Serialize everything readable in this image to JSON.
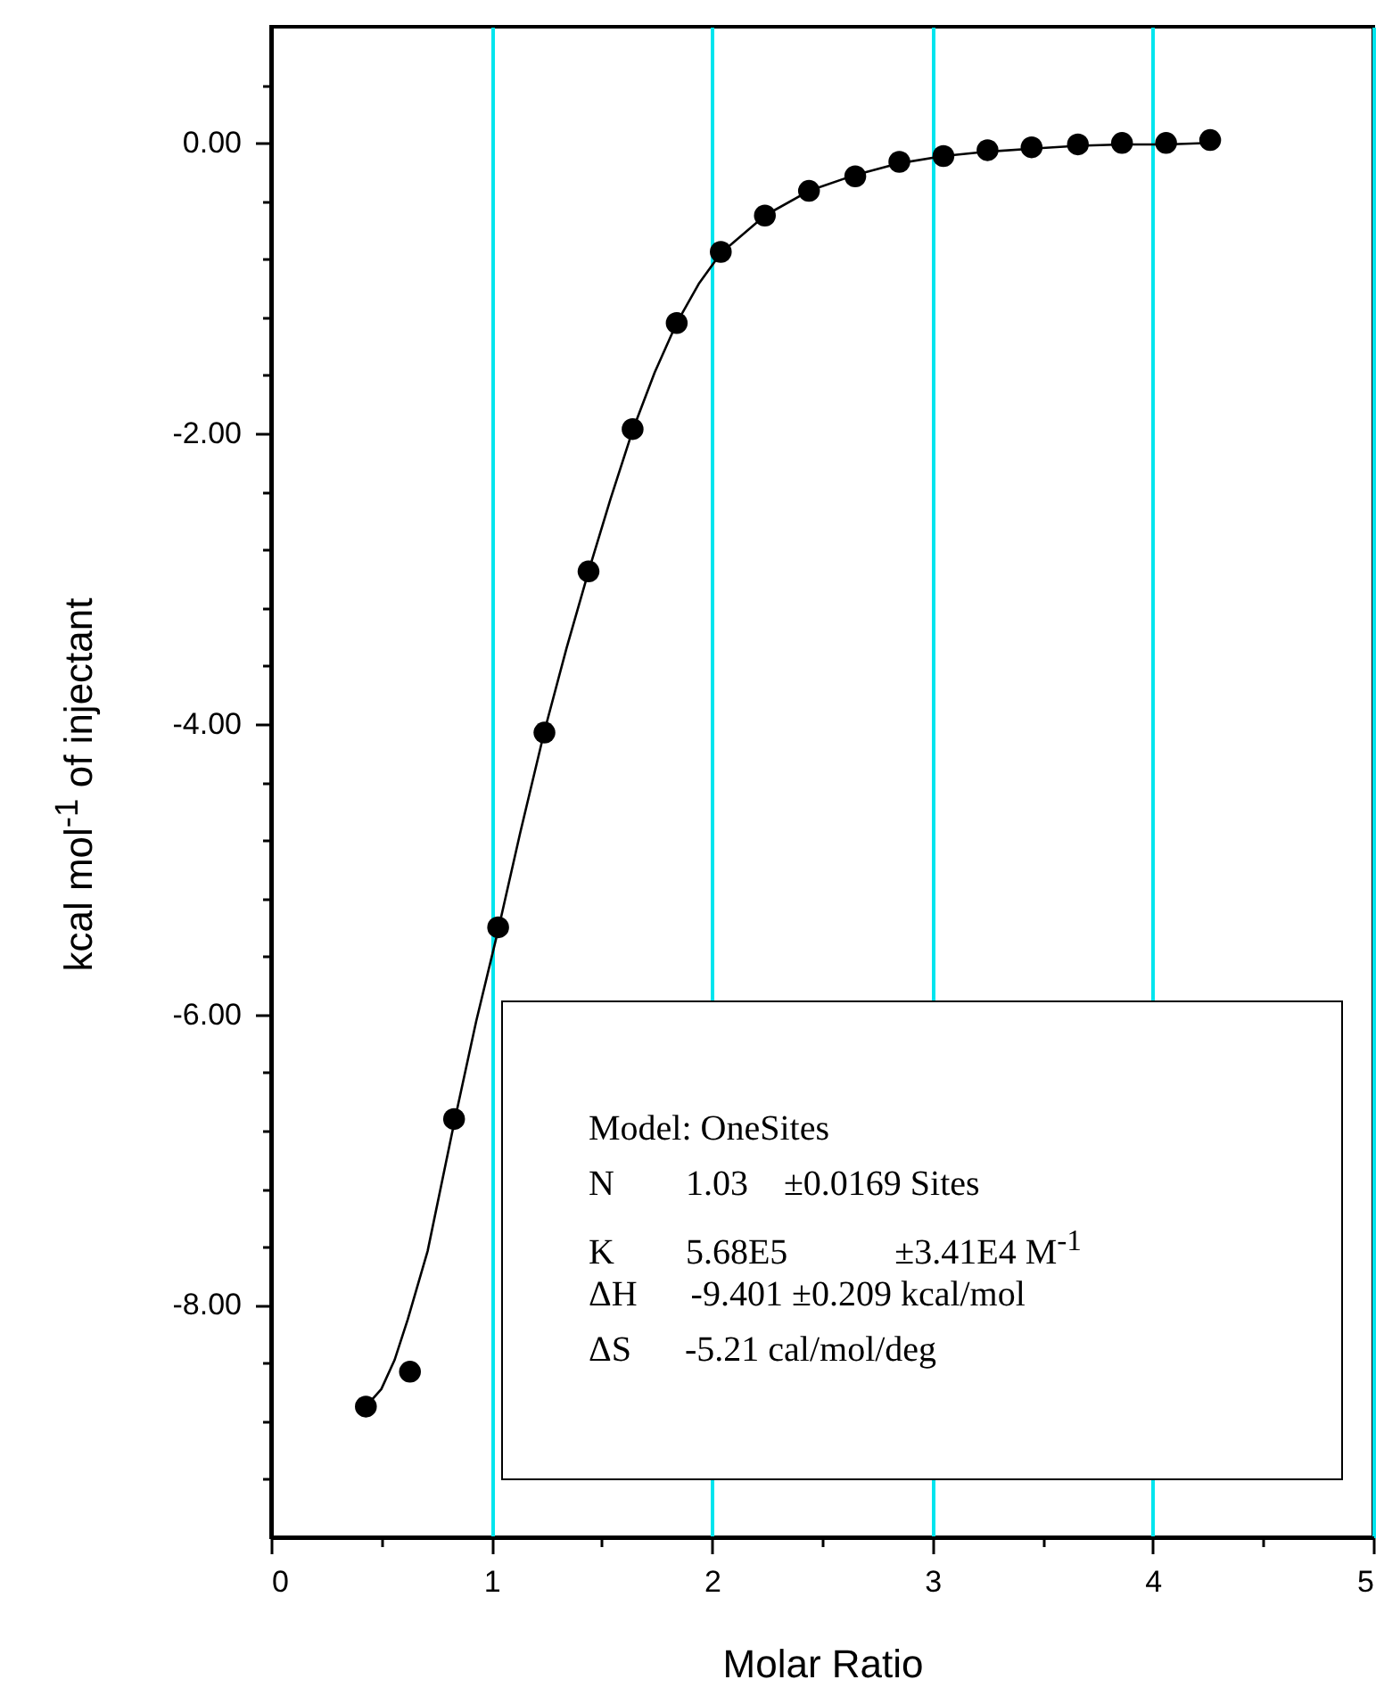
{
  "chart_data": {
    "type": "scatter",
    "xlabel": "Molar Ratio",
    "ylabel": "kcal mol$^{-1}$ of injectant",
    "xlim": [
      0,
      5
    ],
    "xticks": [
      0,
      {
        "value": 0.5,
        "label": null
      },
      1,
      {
        "value": 1.5,
        "label": null
      },
      2,
      {
        "value": 2.5,
        "label": null
      },
      3,
      {
        "value": 3.5,
        "label": null
      },
      4,
      {
        "value": 4.5,
        "label": null
      },
      5
    ],
    "ylim": [
      -9.6,
      0.8
    ],
    "yticks": [
      {
        "value": -9.2,
        "label": null
      },
      {
        "value": -8.8,
        "label": null
      },
      {
        "value": -8.4,
        "label": null
      },
      {
        "value": -8,
        "label": "-8.00"
      },
      {
        "value": -7.6,
        "label": null
      },
      {
        "value": -7.2,
        "label": null
      },
      {
        "value": -6.8,
        "label": null
      },
      {
        "value": -6.4,
        "label": null
      },
      {
        "value": -6,
        "label": "-6.00"
      },
      {
        "value": -5.6,
        "label": null
      },
      {
        "value": -5.2,
        "label": null
      },
      {
        "value": -4.8,
        "label": null
      },
      {
        "value": -4.4,
        "label": null
      },
      {
        "value": -4,
        "label": "-4.00"
      },
      {
        "value": -3.6,
        "label": null
      },
      {
        "value": -3.2,
        "label": null
      },
      {
        "value": -2.8,
        "label": null
      },
      {
        "value": -2.4,
        "label": null
      },
      {
        "value": -2,
        "label": "-2.00"
      },
      {
        "value": -1.6,
        "label": null
      },
      {
        "value": -1.2,
        "label": null
      },
      {
        "value": -0.8,
        "label": null
      },
      {
        "value": -0.4,
        "label": null
      },
      {
        "value": 0,
        "label": "0.00"
      },
      {
        "value": 0.4,
        "label": null
      }
    ],
    "grid": "x",
    "marker": "circle",
    "series": [
      {
        "type": "scatter",
        "color": "#000000",
        "x": [
          0.43,
          0.63,
          0.83,
          1.03,
          1.24,
          1.44,
          1.64,
          1.84,
          2.04,
          2.24,
          2.44,
          2.65,
          2.85,
          3.05,
          3.25,
          3.45,
          3.66,
          3.86,
          4.06,
          4.26
        ],
        "values": [
          -8.7,
          -8.46,
          -6.72,
          -5.4,
          -4.06,
          -2.95,
          -1.97,
          -1.24,
          -0.75,
          -0.5,
          -0.33,
          -0.23,
          -0.13,
          -0.09,
          -0.05,
          -0.03,
          -0.01,
          0,
          0,
          0.02
        ]
      },
      {
        "type": "line",
        "color": "#000000",
        "marker": "none",
        "x": [
          0.43,
          0.5,
          0.56,
          0.62,
          0.71,
          0.83,
          0.93,
          1.03,
          1.13,
          1.24,
          1.34,
          1.44,
          1.54,
          1.64,
          1.74,
          1.84,
          1.94,
          2.04,
          2.24,
          2.44,
          2.65,
          2.85,
          3.05,
          3.25,
          3.45,
          3.66,
          3.86,
          4.06,
          4.26
        ],
        "values": [
          -8.7,
          -8.58,
          -8.38,
          -8.1,
          -7.63,
          -6.75,
          -6.05,
          -5.42,
          -4.75,
          -4.05,
          -3.48,
          -2.95,
          -2.45,
          -1.98,
          -1.58,
          -1.24,
          -0.97,
          -0.76,
          -0.5,
          -0.33,
          -0.22,
          -0.14,
          -0.09,
          -0.06,
          -0.04,
          -0.02,
          -0.01,
          -0.01,
          0
        ]
      }
    ],
    "annotations": [
      "Model: OneSites",
      "N        1.03    ±0.0169 Sites",
      "K        5.68E5            ±3.41E4 M$^{-1}$",
      "ΔH      -9.401 ±0.209 kcal/mol",
      "ΔS      -5.21 cal/mol/deg"
    ]
  }
}
